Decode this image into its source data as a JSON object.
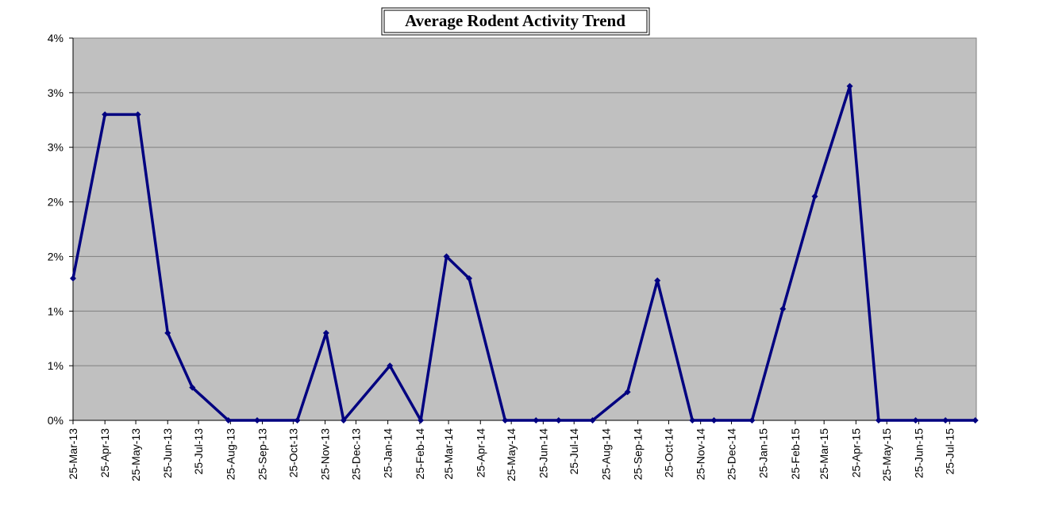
{
  "chart_data": {
    "type": "line",
    "title": "Average Rodent Activity Trend",
    "x": [
      "2013-03-25",
      "2013-04-25",
      "2013-05-27",
      "2013-06-25",
      "2013-07-19",
      "2013-08-23",
      "2013-09-20",
      "2013-10-29",
      "2013-11-26",
      "2013-12-13",
      "2014-01-27",
      "2014-02-26",
      "2014-03-23",
      "2014-04-14",
      "2014-05-19",
      "2014-06-18",
      "2014-07-10",
      "2014-08-12",
      "2014-09-15",
      "2014-10-14",
      "2014-11-17",
      "2014-12-08",
      "2015-01-14",
      "2015-02-13",
      "2015-03-16",
      "2015-04-19",
      "2015-05-17",
      "2015-06-22",
      "2015-07-21",
      "2015-08-19"
    ],
    "values": [
      1.3,
      2.8,
      2.8,
      0.8,
      0.3,
      0,
      0,
      0,
      0.8,
      0,
      0.5,
      0,
      1.5,
      1.3,
      0,
      0,
      0,
      0,
      0.26,
      1.28,
      0,
      0,
      0,
      1.02,
      2.05,
      3.06,
      0,
      0,
      0,
      0
    ],
    "color": "#000080",
    "xlim": [
      "2013-03-25",
      "2015-08-20"
    ],
    "xticks": [
      {
        "value": "2013-03-25",
        "label": "25-Mar-13"
      },
      {
        "value": "2013-04-25",
        "label": "25-Apr-13"
      },
      {
        "value": "2013-05-25",
        "label": "25-May-13"
      },
      {
        "value": "2013-06-25",
        "label": "25-Jun-13"
      },
      {
        "value": "2013-07-25",
        "label": "25-Jul-13"
      },
      {
        "value": "2013-08-25",
        "label": "25-Aug-13"
      },
      {
        "value": "2013-09-25",
        "label": "25-Sep-13"
      },
      {
        "value": "2013-10-25",
        "label": "25-Oct-13"
      },
      {
        "value": "2013-11-25",
        "label": "25-Nov-13"
      },
      {
        "value": "2013-12-25",
        "label": "25-Dec-13"
      },
      {
        "value": "2014-01-25",
        "label": "25-Jan-14"
      },
      {
        "value": "2014-02-25",
        "label": "25-Feb-14"
      },
      {
        "value": "2014-03-25",
        "label": "25-Mar-14"
      },
      {
        "value": "2014-04-25",
        "label": "25-Apr-14"
      },
      {
        "value": "2014-05-25",
        "label": "25-May-14"
      },
      {
        "value": "2014-06-25",
        "label": "25-Jun-14"
      },
      {
        "value": "2014-07-25",
        "label": "25-Jul-14"
      },
      {
        "value": "2014-08-25",
        "label": "25-Aug-14"
      },
      {
        "value": "2014-09-25",
        "label": "25-Sep-14"
      },
      {
        "value": "2014-10-25",
        "label": "25-Oct-14"
      },
      {
        "value": "2014-11-25",
        "label": "25-Nov-14"
      },
      {
        "value": "2014-12-25",
        "label": "25-Dec-14"
      },
      {
        "value": "2015-01-25",
        "label": "25-Jan-15"
      },
      {
        "value": "2015-02-25",
        "label": "25-Feb-15"
      },
      {
        "value": "2015-03-25",
        "label": "25-Mar-15"
      },
      {
        "value": "2015-04-25",
        "label": "25-Apr-15"
      },
      {
        "value": "2015-05-25",
        "label": "25-May-15"
      },
      {
        "value": "2015-06-25",
        "label": "25-Jun-15"
      },
      {
        "value": "2015-07-25",
        "label": "25-Jul-15"
      }
    ],
    "ylim": [
      0,
      3.5
    ],
    "yticks": [
      {
        "value": 0,
        "label": "0%"
      },
      {
        "value": 0.5,
        "label": "1%"
      },
      {
        "value": 1,
        "label": "1%"
      },
      {
        "value": 1.5,
        "label": "2%"
      },
      {
        "value": 2,
        "label": "2%"
      },
      {
        "value": 2.5,
        "label": "3%"
      },
      {
        "value": 3,
        "label": "3%"
      },
      {
        "value": 3.5,
        "label": "4%"
      }
    ],
    "grid": true
  }
}
